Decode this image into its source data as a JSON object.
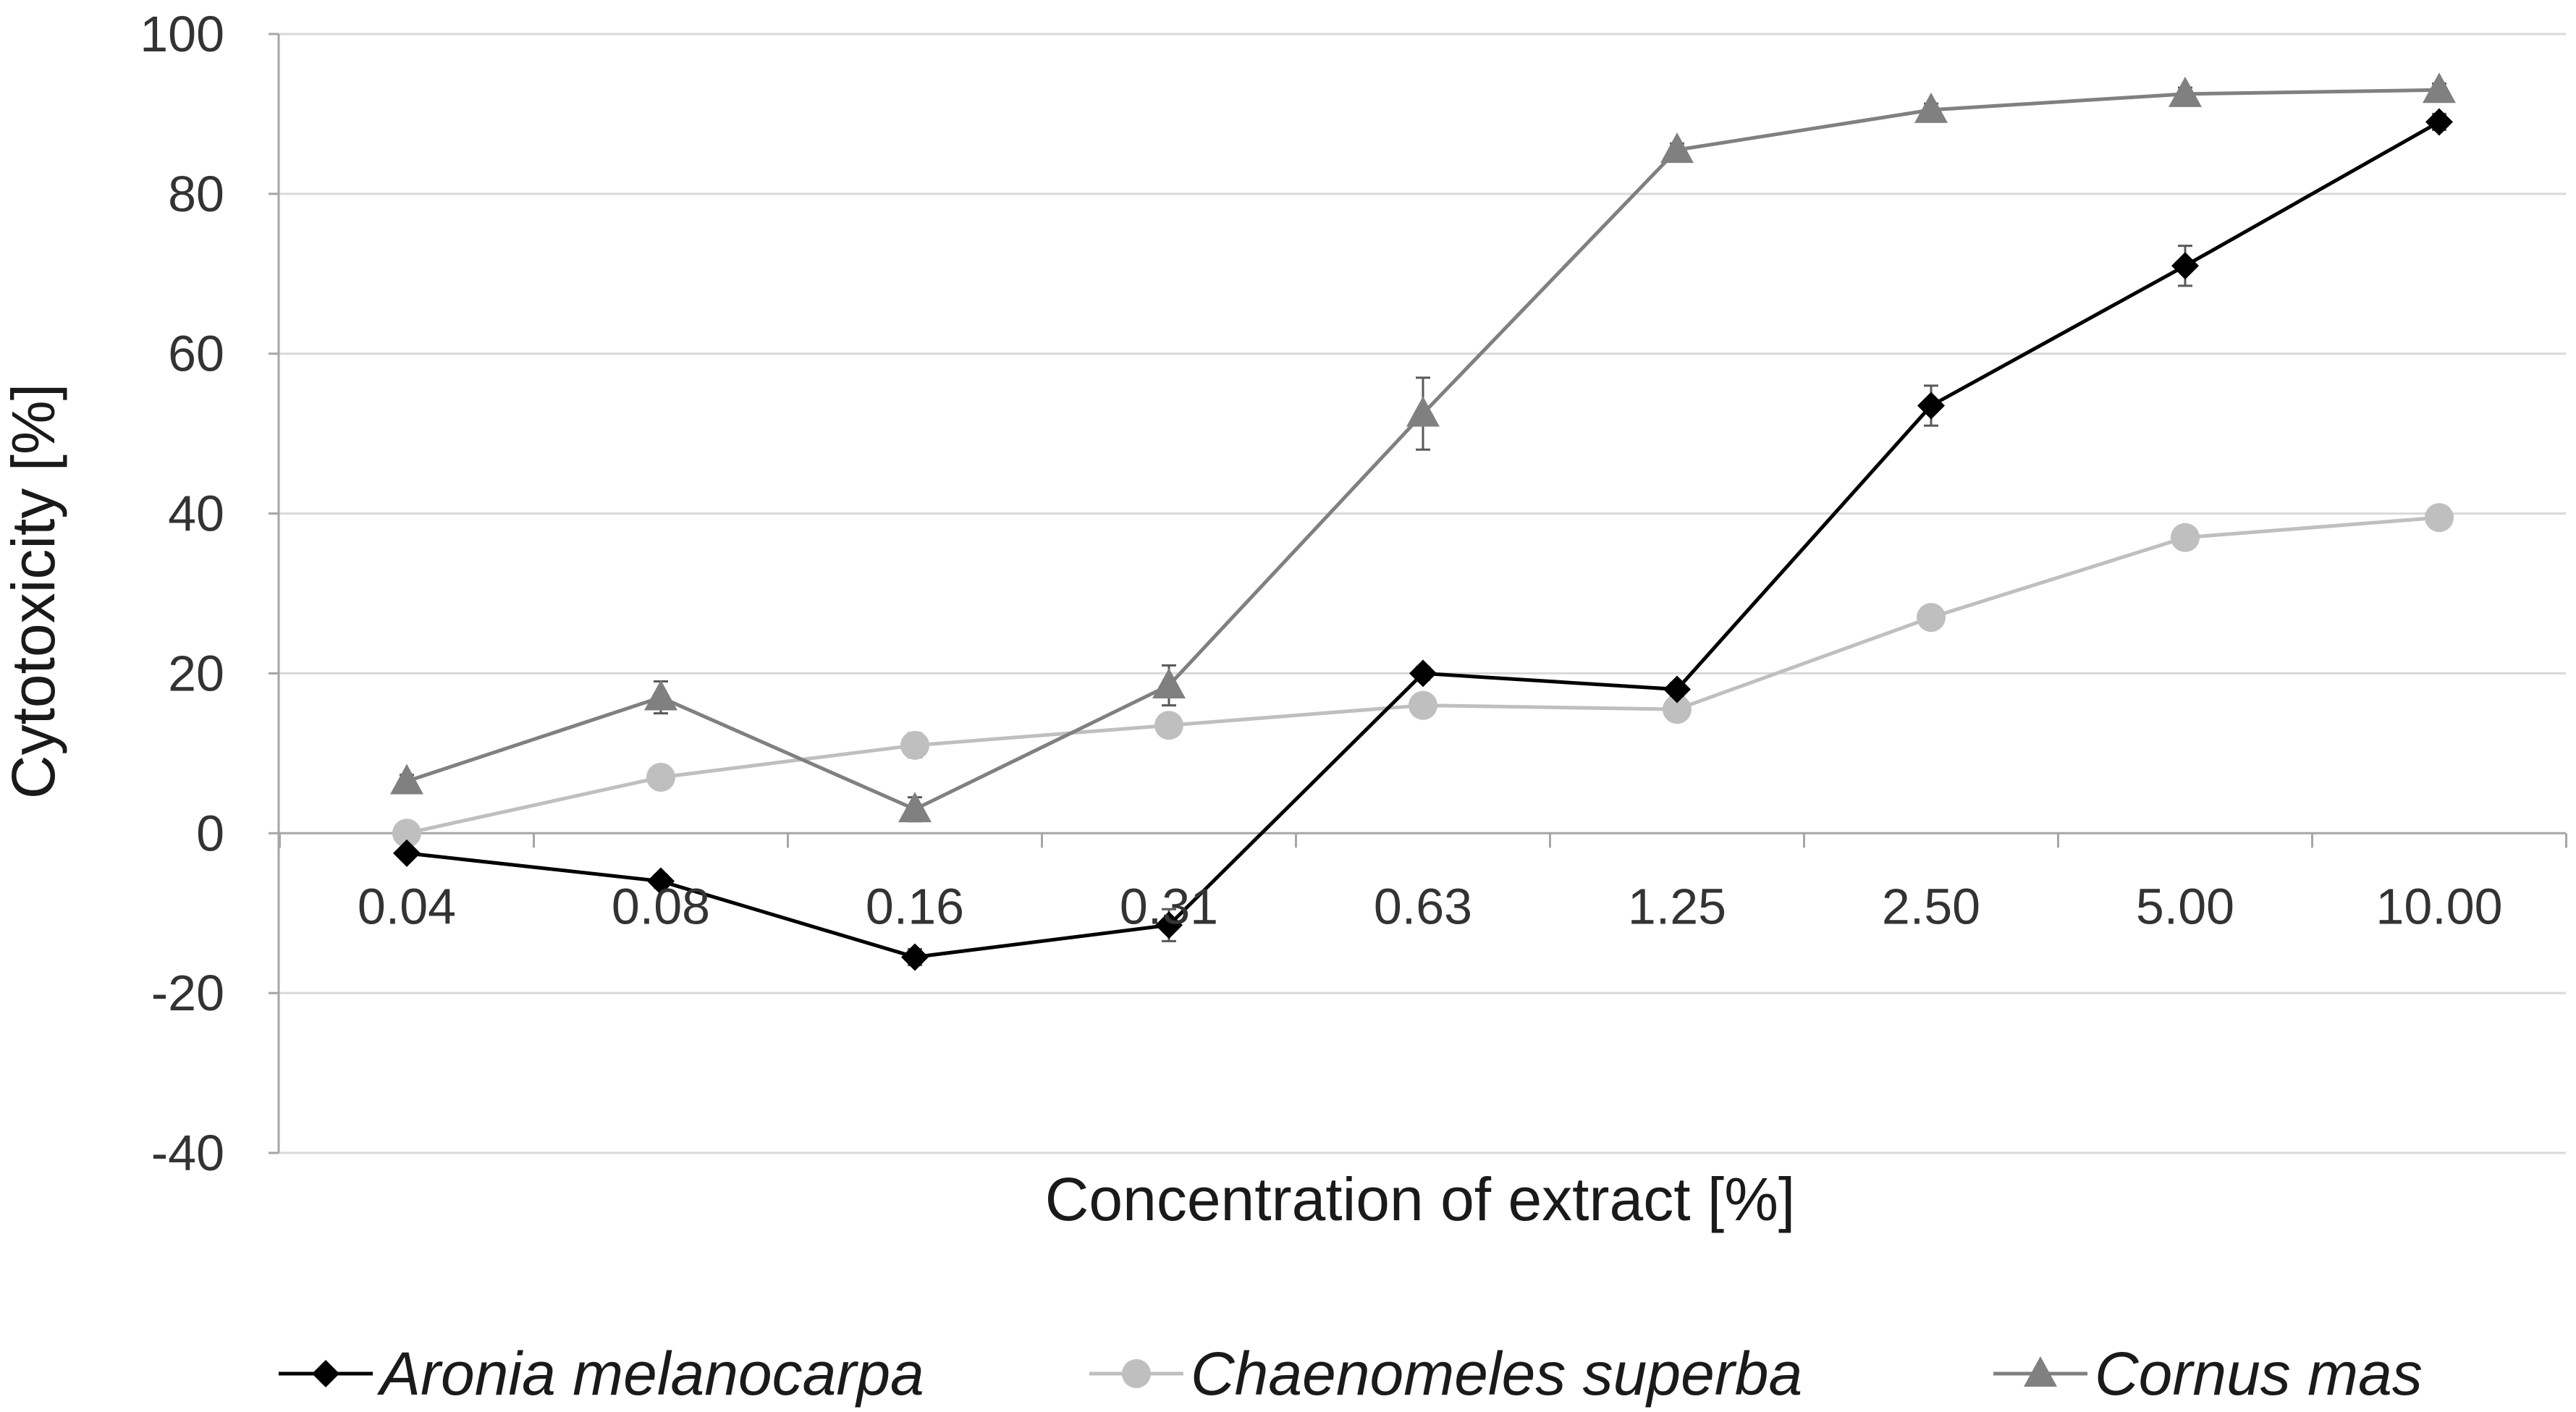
{
  "chart_data": {
    "type": "line",
    "title": "",
    "xlabel": "Concentration of extract [%]",
    "ylabel": "Cytotoxicity [%]",
    "categories": [
      "0.04",
      "0.08",
      "0.16",
      "0.31",
      "0.63",
      "1.25",
      "2.50",
      "5.00",
      "10.00"
    ],
    "ylim": [
      -40,
      100
    ],
    "yticks": [
      -40,
      -20,
      0,
      20,
      40,
      60,
      80,
      100
    ],
    "ytick_labels": [
      "-40",
      "-20",
      "0",
      "20",
      "40",
      "60",
      "80",
      "100"
    ],
    "grid": true,
    "legend_position": "bottom",
    "series": [
      {
        "name": "Aronia melanocarpa",
        "color": "#000000",
        "marker": "diamond",
        "values": [
          -2.5,
          -6,
          -15.5,
          -11.5,
          20,
          18,
          53.5,
          71,
          89
        ],
        "errors": [
          0.5,
          0.8,
          1.0,
          2.0,
          0.8,
          0.8,
          2.5,
          2.5,
          1.0
        ]
      },
      {
        "name": "Chaenomeles superba",
        "color": "#bfbfbf",
        "marker": "circle",
        "values": [
          0,
          7,
          11,
          13.5,
          16,
          15.5,
          27,
          37,
          39.5
        ],
        "errors": [
          0.5,
          0.8,
          1.5,
          1.0,
          1.0,
          1.0,
          1.0,
          1.0,
          1.0
        ]
      },
      {
        "name": "Cornus mas",
        "color": "#808080",
        "marker": "triangle",
        "values": [
          6.5,
          17,
          3,
          18.5,
          52.5,
          85.5,
          90.5,
          92.5,
          93
        ],
        "errors": [
          0.8,
          2.0,
          1.5,
          2.5,
          4.5,
          0.8,
          0.8,
          0.8,
          0.8
        ]
      }
    ]
  }
}
